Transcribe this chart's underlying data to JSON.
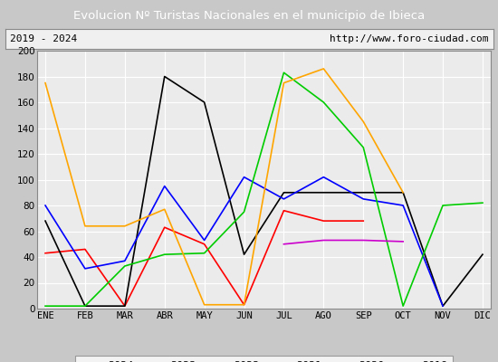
{
  "title": "Evolucion Nº Turistas Nacionales en el municipio de Ibieca",
  "subtitle_left": "2019 - 2024",
  "subtitle_right": "http://www.foro-ciudad.com",
  "months": [
    "ENE",
    "FEB",
    "MAR",
    "ABR",
    "MAY",
    "JUN",
    "JUL",
    "AGO",
    "SEP",
    "OCT",
    "NOV",
    "DIC"
  ],
  "ylim": [
    0,
    200
  ],
  "yticks": [
    0,
    20,
    40,
    60,
    80,
    100,
    120,
    140,
    160,
    180,
    200
  ],
  "series": {
    "2024": {
      "color": "#ff0000",
      "data": [
        43,
        46,
        2,
        63,
        50,
        3,
        76,
        68,
        68,
        null,
        null,
        null
      ]
    },
    "2023": {
      "color": "#000000",
      "data": [
        68,
        2,
        2,
        180,
        160,
        42,
        90,
        90,
        90,
        90,
        2,
        42
      ]
    },
    "2022": {
      "color": "#0000ff",
      "data": [
        80,
        31,
        37,
        95,
        53,
        102,
        85,
        102,
        85,
        80,
        2,
        null
      ]
    },
    "2021": {
      "color": "#00cc00",
      "data": [
        2,
        2,
        33,
        42,
        43,
        75,
        183,
        160,
        125,
        2,
        80,
        82
      ]
    },
    "2020": {
      "color": "#ffa500",
      "data": [
        175,
        64,
        64,
        77,
        3,
        3,
        175,
        186,
        145,
        90,
        null,
        null
      ]
    },
    "2019": {
      "color": "#cc00cc",
      "data": [
        null,
        null,
        null,
        null,
        null,
        null,
        50,
        53,
        53,
        52,
        null,
        null
      ]
    }
  },
  "title_bg_color": "#4f9fd4",
  "title_text_color": "#ffffff",
  "plot_bg_color": "#ebebeb",
  "grid_color": "#ffffff",
  "outer_bg_color": "#c8c8c8",
  "subtitle_box_color": "#f0f0f0",
  "border_color": "#888888"
}
